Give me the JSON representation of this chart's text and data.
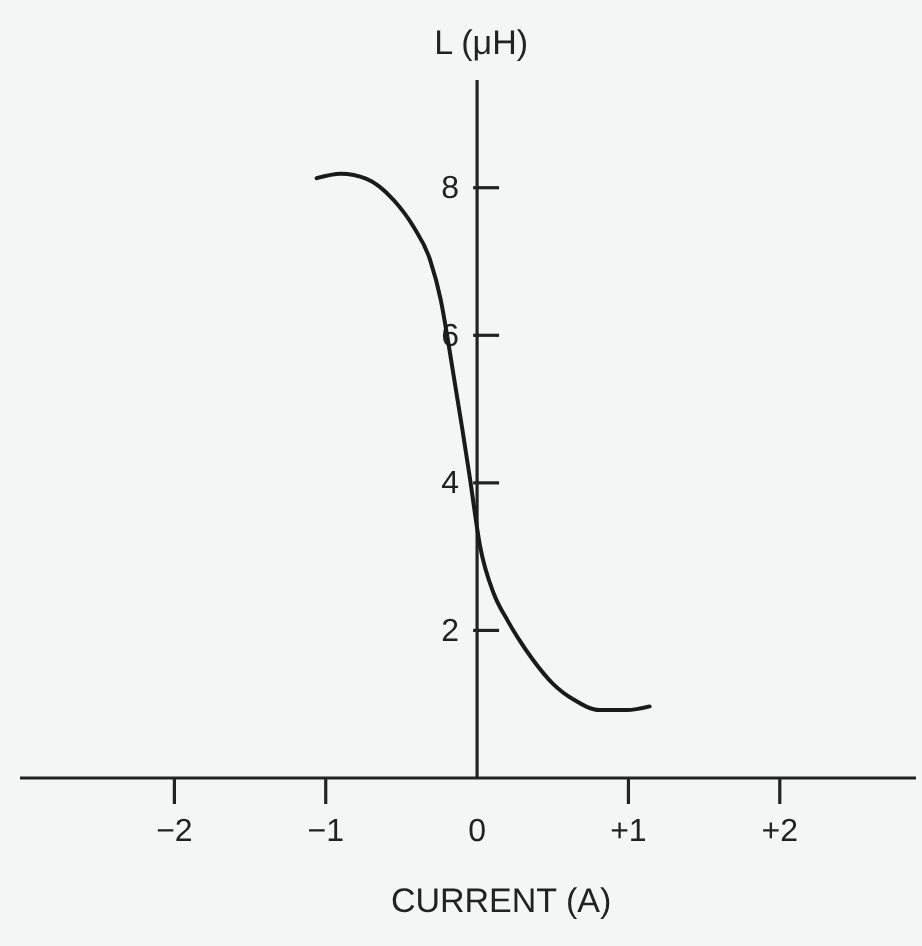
{
  "chart_data": {
    "type": "line",
    "xlabel": "CURRENT (A)",
    "ylabel": "L (μH)",
    "x": [
      -1.06,
      -0.9,
      -0.73,
      -0.55,
      -0.42,
      -0.31,
      -0.24,
      -0.19,
      -0.15,
      -0.1,
      -0.05,
      0.02,
      0.11,
      0.2,
      0.27,
      0.37,
      0.5,
      0.64,
      0.81,
      0.99,
      1.14
    ],
    "values": [
      8.13,
      8.19,
      8.12,
      7.83,
      7.47,
      7.02,
      6.48,
      5.9,
      5.39,
      4.76,
      4.1,
      3.14,
      2.5,
      2.14,
      1.9,
      1.6,
      1.28,
      1.06,
      0.92,
      0.92,
      0.97
    ],
    "color": "#1a1a1a",
    "line_style": "solid",
    "xlim": [
      -3.02,
      2.9
    ],
    "ylim": [
      0,
      9.46
    ],
    "xticks": [
      {
        "value": -2,
        "label": "−2"
      },
      {
        "value": -1,
        "label": "−1"
      },
      0,
      {
        "value": 1,
        "label": "+1"
      },
      {
        "value": 2,
        "label": "+2"
      }
    ],
    "yticks": [
      2,
      4,
      6,
      8
    ]
  }
}
